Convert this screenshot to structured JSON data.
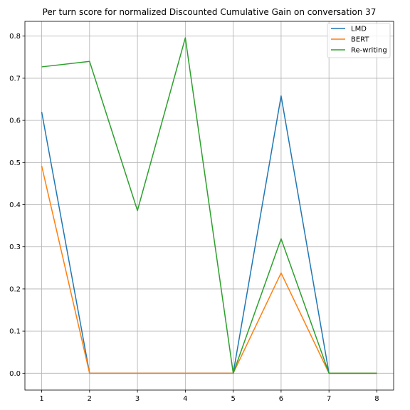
{
  "chart_data": {
    "type": "line",
    "title": "Per turn score for normalized Discounted Cumulative Gain on conversation 37",
    "xlabel": "",
    "ylabel": "",
    "x": [
      1,
      2,
      3,
      4,
      5,
      6,
      7,
      8
    ],
    "xlim": [
      0.65,
      8.35
    ],
    "ylim": [
      -0.04,
      0.835
    ],
    "xticks": [
      1,
      2,
      3,
      4,
      5,
      6,
      7,
      8
    ],
    "yticks": [
      0.0,
      0.1,
      0.2,
      0.3,
      0.4,
      0.5,
      0.6,
      0.7,
      0.8
    ],
    "ytick_labels": [
      "0.0",
      "0.1",
      "0.2",
      "0.3",
      "0.4",
      "0.5",
      "0.6",
      "0.7",
      "0.8"
    ],
    "grid": true,
    "legend_position": "top-right",
    "series": [
      {
        "name": "LMD",
        "color": "#1f77b4",
        "values": [
          0.62,
          0.0,
          0.0,
          0.0,
          0.0,
          0.658,
          0.0,
          0.0
        ]
      },
      {
        "name": "BERT",
        "color": "#ff7f0e",
        "values": [
          0.492,
          0.0,
          0.0,
          0.0,
          0.0,
          0.238,
          0.0,
          0.0
        ]
      },
      {
        "name": "Re-writing",
        "color": "#2ca02c",
        "values": [
          0.727,
          0.74,
          0.386,
          0.796,
          0.0,
          0.319,
          0.0,
          0.0
        ]
      }
    ]
  }
}
